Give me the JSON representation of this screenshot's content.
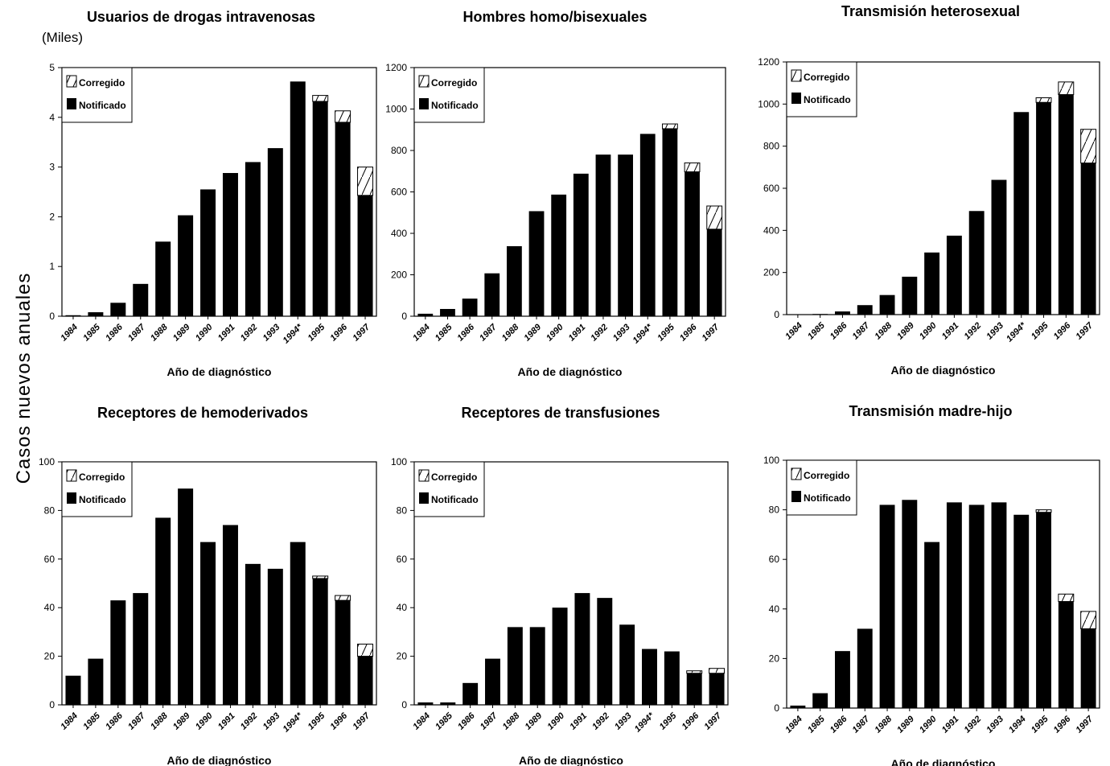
{
  "figure": {
    "y_axis_label": "Casos nuevos anuales",
    "legend_corrected": "Corregido",
    "legend_reported": "Notificado",
    "colors": {
      "bar": "#000000",
      "background": "#ffffff"
    }
  },
  "chart_data": [
    {
      "type": "bar",
      "title": "Usuarios de drogas intravenosas",
      "units_label": "(Miles)",
      "xlabel": "Año de diagnóstico",
      "ylabel": "",
      "ylim": [
        0,
        5
      ],
      "yticks": [
        0,
        1,
        2,
        3,
        4,
        5
      ],
      "categories": [
        "1984",
        "1985",
        "1986",
        "1987",
        "1988",
        "1989",
        "1990",
        "1991",
        "1992",
        "1993",
        "1994*",
        "1995",
        "1996",
        "1997"
      ],
      "series": [
        {
          "name": "Notificado",
          "values": [
            0.02,
            0.08,
            0.27,
            0.65,
            1.5,
            2.03,
            2.55,
            2.88,
            3.1,
            3.38,
            4.72,
            4.32,
            3.9,
            2.43
          ]
        },
        {
          "name": "Corregido",
          "values": [
            0,
            0,
            0,
            0,
            0,
            0,
            0,
            0,
            0,
            0,
            0,
            0.12,
            0.23,
            0.57
          ]
        }
      ],
      "legend": "top-left"
    },
    {
      "type": "bar",
      "title": "Hombres homo/bisexuales",
      "xlabel": "Año de diagnóstico",
      "ylabel": "",
      "ylim": [
        0,
        1200
      ],
      "yticks": [
        0,
        200,
        400,
        600,
        800,
        1000,
        1200
      ],
      "categories": [
        "1984",
        "1985",
        "1986",
        "1987",
        "1988",
        "1989",
        "1990",
        "1991",
        "1992",
        "1993",
        "1994*",
        "1995",
        "1996",
        "1997"
      ],
      "series": [
        {
          "name": "Notificado",
          "values": [
            12,
            35,
            85,
            207,
            338,
            507,
            587,
            688,
            780,
            780,
            880,
            905,
            697,
            420
          ]
        },
        {
          "name": "Corregido",
          "values": [
            0,
            0,
            0,
            0,
            0,
            0,
            0,
            0,
            0,
            0,
            0,
            23,
            43,
            112
          ]
        }
      ],
      "legend": "top-left"
    },
    {
      "type": "bar",
      "title": "Transmisión heterosexual",
      "xlabel": "Año de diagnóstico",
      "ylabel": "",
      "ylim": [
        0,
        1200
      ],
      "yticks": [
        0,
        200,
        400,
        600,
        800,
        1000,
        1200
      ],
      "categories": [
        "1984",
        "1985",
        "1986",
        "1987",
        "1988",
        "1989",
        "1990",
        "1991",
        "1992",
        "1993",
        "1994*",
        "1995",
        "1996",
        "1997"
      ],
      "series": [
        {
          "name": "Notificado",
          "values": [
            1,
            3,
            15,
            45,
            93,
            180,
            295,
            375,
            492,
            640,
            962,
            1008,
            1045,
            720
          ]
        },
        {
          "name": "Corregido",
          "values": [
            0,
            0,
            0,
            0,
            0,
            0,
            0,
            0,
            0,
            0,
            0,
            22,
            60,
            160
          ]
        }
      ],
      "legend": "top-left"
    },
    {
      "type": "bar",
      "title": "Receptores de hemoderivados",
      "xlabel": "Año de diagnóstico",
      "ylabel": "",
      "ylim": [
        0,
        100
      ],
      "yticks": [
        0,
        20,
        40,
        60,
        80,
        100
      ],
      "categories": [
        "1984",
        "1985",
        "1986",
        "1987",
        "1988",
        "1989",
        "1990",
        "1991",
        "1992",
        "1993",
        "1994*",
        "1995",
        "1996",
        "1997"
      ],
      "series": [
        {
          "name": "Notificado",
          "values": [
            12,
            19,
            43,
            46,
            77,
            89,
            67,
            74,
            58,
            56,
            67,
            52,
            43,
            20
          ]
        },
        {
          "name": "Corregido",
          "values": [
            0,
            0,
            0,
            0,
            0,
            0,
            0,
            0,
            0,
            0,
            0,
            1,
            2,
            5
          ]
        }
      ],
      "legend": "top-left"
    },
    {
      "type": "bar",
      "title": "Receptores de transfusiones",
      "xlabel": "Año de diagnóstico",
      "ylabel": "",
      "ylim": [
        0,
        100
      ],
      "yticks": [
        0,
        20,
        40,
        60,
        80,
        100
      ],
      "categories": [
        "1984",
        "1985",
        "1986",
        "1987",
        "1988",
        "1989",
        "1990",
        "1991",
        "1992",
        "1993",
        "1994*",
        "1995",
        "1996",
        "1997"
      ],
      "series": [
        {
          "name": "Notificado",
          "values": [
            1,
            1,
            9,
            19,
            32,
            32,
            40,
            46,
            44,
            33,
            23,
            22,
            13,
            13
          ]
        },
        {
          "name": "Corregido",
          "values": [
            0,
            0,
            0,
            0,
            0,
            0,
            0,
            0,
            0,
            0,
            0,
            0,
            1,
            2
          ]
        }
      ],
      "legend": "top-left"
    },
    {
      "type": "bar",
      "title": "Transmisión madre-hijo",
      "xlabel": "Año de diagnóstico",
      "ylabel": "",
      "ylim": [
        0,
        100
      ],
      "yticks": [
        0,
        20,
        40,
        60,
        80,
        100
      ],
      "categories": [
        "1984",
        "1985",
        "1986",
        "1987",
        "1988",
        "1989",
        "1990",
        "1991",
        "1992",
        "1993",
        "1994",
        "1995",
        "1996",
        "1997"
      ],
      "series": [
        {
          "name": "Notificado",
          "values": [
            1,
            6,
            23,
            32,
            82,
            84,
            67,
            83,
            82,
            83,
            78,
            79,
            43,
            32
          ]
        },
        {
          "name": "Corregido",
          "values": [
            0,
            0,
            0,
            0,
            0,
            0,
            0,
            0,
            0,
            0,
            0,
            1,
            3,
            7
          ]
        }
      ],
      "legend": "top-left"
    }
  ]
}
